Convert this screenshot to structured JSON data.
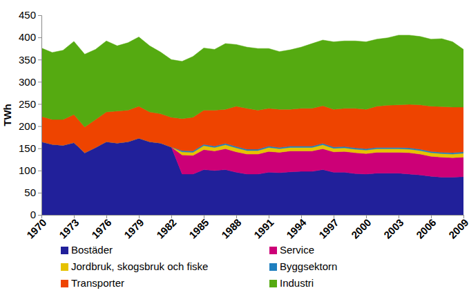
{
  "chart_data": {
    "type": "area",
    "stacked": true,
    "grid": false,
    "y_label": "TWh",
    "x": [
      1970,
      1971,
      1972,
      1973,
      1974,
      1975,
      1976,
      1977,
      1978,
      1979,
      1980,
      1981,
      1982,
      1983,
      1984,
      1985,
      1986,
      1987,
      1988,
      1989,
      1990,
      1991,
      1992,
      1993,
      1994,
      1995,
      1996,
      1997,
      1998,
      1999,
      2000,
      2001,
      2002,
      2003,
      2004,
      2005,
      2006,
      2007,
      2008,
      2009
    ],
    "xlim": [
      1970,
      2009
    ],
    "xticks": [
      1970,
      1973,
      1976,
      1979,
      1982,
      1985,
      1988,
      1991,
      1994,
      1997,
      2000,
      2003,
      2006,
      2009
    ],
    "ylim": [
      0,
      450
    ],
    "yticks": [
      0,
      50,
      100,
      150,
      200,
      250,
      300,
      350,
      400,
      450
    ],
    "series": [
      {
        "name": "Bostäder",
        "color": "#21209a",
        "values": [
          165,
          159,
          157,
          163,
          140,
          152,
          165,
          162,
          165,
          173,
          165,
          162,
          153,
          92,
          92,
          102,
          100,
          102,
          96,
          92,
          92,
          96,
          95,
          97,
          98,
          98,
          102,
          96,
          96,
          93,
          92,
          94,
          94,
          94,
          92,
          90,
          87,
          85,
          85,
          86
        ]
      },
      {
        "name": "Service",
        "color": "#cc0077",
        "values": [
          0,
          0,
          0,
          0,
          0,
          0,
          0,
          0,
          0,
          0,
          0,
          0,
          0,
          43,
          42,
          45,
          44,
          47,
          46,
          45,
          45,
          47,
          46,
          47,
          46,
          46,
          47,
          46,
          47,
          47,
          46,
          47,
          47,
          47,
          48,
          47,
          45,
          45,
          44,
          44
        ]
      },
      {
        "name": "Jordbruk, skogsbruk och fiske",
        "color": "#e6c200",
        "values": [
          0,
          0,
          0,
          0,
          0,
          0,
          0,
          0,
          0,
          0,
          0,
          0,
          0,
          7,
          7,
          9,
          8,
          9,
          9,
          8,
          8,
          9,
          8,
          8,
          8,
          8,
          9,
          8,
          8,
          8,
          8,
          8,
          8,
          8,
          8,
          8,
          8,
          8,
          8,
          9
        ]
      },
      {
        "name": "Byggsektorn",
        "color": "#1f7fbf",
        "values": [
          0,
          0,
          0,
          0,
          0,
          0,
          0,
          0,
          0,
          0,
          0,
          0,
          0,
          3,
          3,
          3,
          3,
          3,
          3,
          3,
          3,
          3,
          3,
          3,
          3,
          3,
          3,
          3,
          3,
          3,
          3,
          3,
          3,
          3,
          3,
          3,
          3,
          3,
          3,
          3
        ]
      },
      {
        "name": "Transporter",
        "color": "#ee4400",
        "values": [
          57,
          56,
          58,
          63,
          58,
          63,
          67,
          72,
          71,
          72,
          67,
          66,
          67,
          72,
          76,
          77,
          81,
          77,
          91,
          92,
          88,
          85,
          86,
          83,
          85,
          85,
          85,
          85,
          86,
          89,
          89,
          93,
          95,
          96,
          98,
          100,
          102,
          103,
          103,
          101
        ]
      },
      {
        "name": "Industri",
        "color": "#55aa11",
        "values": [
          154,
          151,
          156,
          165,
          164,
          158,
          160,
          147,
          152,
          156,
          149,
          139,
          130,
          129,
          137,
          140,
          137,
          148,
          139,
          138,
          139,
          135,
          130,
          134,
          138,
          146,
          148,
          152,
          152,
          152,
          152,
          151,
          152,
          157,
          156,
          154,
          151,
          153,
          147,
          130
        ]
      }
    ]
  }
}
